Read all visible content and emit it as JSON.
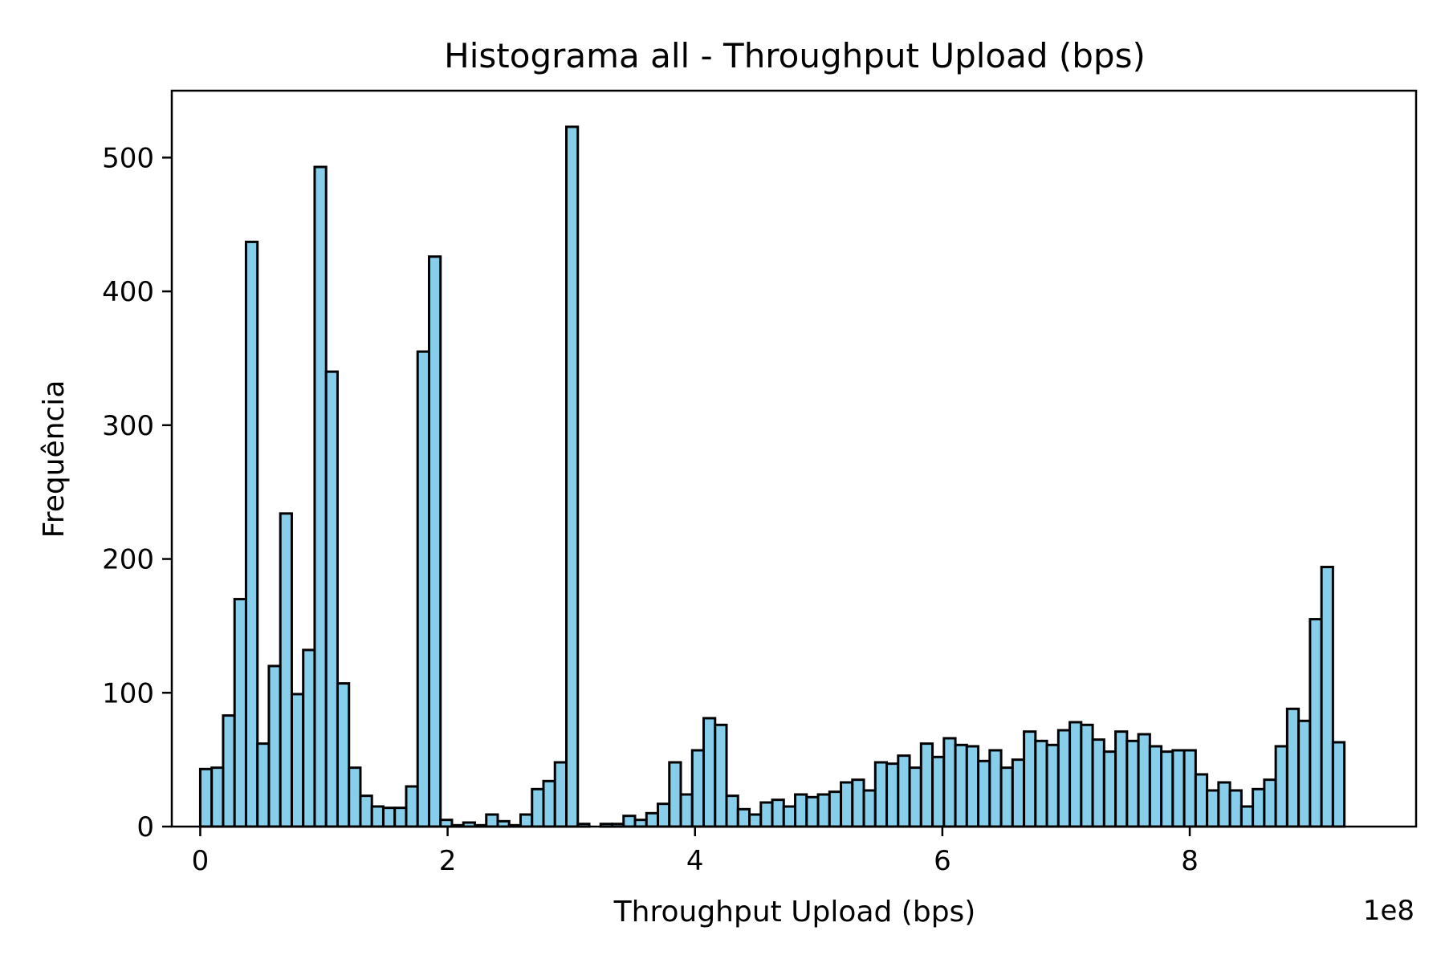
{
  "chart_data": {
    "type": "bar",
    "title": "Histograma all - Throughput Upload (bps)",
    "xlabel": "Throughput Upload (bps)",
    "ylabel": "Frequência",
    "offset_text": "1e8",
    "colors": {
      "bar_fill": "#87CEEB",
      "bar_edge": "#000000"
    },
    "grid": false,
    "legend": "none",
    "xlim": [
      -0.23,
      9.83
    ],
    "ylim": [
      0,
      550
    ],
    "x_ticks": [
      0,
      2,
      4,
      6,
      8
    ],
    "x_tick_labels": [
      "0",
      "2",
      "4",
      "6",
      "8"
    ],
    "y_ticks": [
      0,
      100,
      200,
      300,
      400,
      500
    ],
    "y_tick_labels": [
      "0",
      "100",
      "200",
      "300",
      "400",
      "500"
    ],
    "bin_start": 0,
    "bin_width": 0.0925,
    "values": [
      43,
      44,
      83,
      170,
      437,
      62,
      120,
      234,
      99,
      132,
      493,
      340,
      107,
      44,
      23,
      15,
      14,
      14,
      30,
      355,
      426,
      5,
      1,
      3,
      1,
      9,
      4,
      1,
      9,
      28,
      34,
      48,
      523,
      2,
      0,
      2,
      2,
      8,
      5,
      10,
      17,
      48,
      24,
      57,
      81,
      76,
      23,
      13,
      9,
      18,
      20,
      15,
      24,
      22,
      24,
      26,
      33,
      35,
      27,
      48,
      47,
      53,
      44,
      62,
      52,
      66,
      61,
      60,
      49,
      57,
      44,
      50,
      71,
      64,
      61,
      72,
      78,
      76,
      65,
      56,
      71,
      64,
      69,
      60,
      56,
      57,
      57,
      39,
      27,
      33,
      27,
      15,
      28,
      35,
      60,
      88,
      79,
      155,
      194,
      63
    ]
  }
}
